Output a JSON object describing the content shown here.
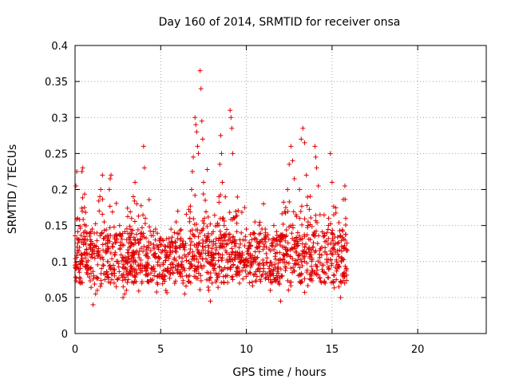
{
  "chart_data": {
    "type": "scatter",
    "title": "Day 160 of 2014, SRMTID for receiver onsa",
    "xlabel": "GPS time / hours",
    "ylabel": "SRMTID / TECUs",
    "xlim": [
      0,
      24
    ],
    "ylim": [
      0,
      0.4
    ],
    "x_ticks": [
      0,
      5,
      10,
      15,
      20
    ],
    "y_ticks": [
      0,
      0.05,
      0.1,
      0.15,
      0.2,
      0.25,
      0.3,
      0.35,
      0.4
    ],
    "x_tick_labels": [
      "0",
      "5",
      "10",
      "15",
      "20"
    ],
    "y_tick_labels": [
      "0",
      "0.05",
      "0.1",
      "0.15",
      "0.2",
      "0.25",
      "0.3",
      "0.35",
      "0.4"
    ],
    "grid": true,
    "marker": "+",
    "color": "#e00000",
    "series": [
      {
        "name": "SRMTID",
        "points": [
          [
            0.0,
            0.095
          ],
          [
            0.05,
            0.205
          ],
          [
            0.1,
            0.225
          ],
          [
            0.12,
            0.12
          ],
          [
            0.15,
            0.16
          ],
          [
            0.2,
            0.13
          ],
          [
            0.25,
            0.085
          ],
          [
            0.3,
            0.07
          ],
          [
            0.35,
            0.11
          ],
          [
            0.4,
            0.225
          ],
          [
            0.45,
            0.23
          ],
          [
            0.5,
            0.14
          ],
          [
            0.55,
            0.175
          ],
          [
            0.6,
            0.105
          ],
          [
            0.7,
            0.095
          ],
          [
            0.8,
            0.09
          ],
          [
            0.9,
            0.13
          ],
          [
            1.0,
            0.145
          ],
          [
            1.05,
            0.04
          ],
          [
            1.1,
            0.08
          ],
          [
            1.2,
            0.055
          ],
          [
            1.3,
            0.06
          ],
          [
            1.4,
            0.11
          ],
          [
            1.45,
            0.19
          ],
          [
            1.5,
            0.2
          ],
          [
            1.6,
            0.22
          ],
          [
            1.7,
            0.155
          ],
          [
            1.8,
            0.125
          ],
          [
            1.9,
            0.1
          ],
          [
            2.0,
            0.2
          ],
          [
            2.05,
            0.215
          ],
          [
            2.1,
            0.22
          ],
          [
            2.2,
            0.12
          ],
          [
            2.3,
            0.08
          ],
          [
            2.4,
            0.065
          ],
          [
            2.5,
            0.1
          ],
          [
            2.6,
            0.15
          ],
          [
            2.7,
            0.135
          ],
          [
            2.8,
            0.05
          ],
          [
            2.9,
            0.055
          ],
          [
            3.0,
            0.06
          ],
          [
            3.1,
            0.075
          ],
          [
            3.2,
            0.13
          ],
          [
            3.3,
            0.16
          ],
          [
            3.4,
            0.19
          ],
          [
            3.5,
            0.21
          ],
          [
            3.6,
            0.18
          ],
          [
            3.7,
            0.11
          ],
          [
            3.8,
            0.085
          ],
          [
            3.9,
            0.07
          ],
          [
            4.0,
            0.26
          ],
          [
            4.05,
            0.23
          ],
          [
            4.1,
            0.16
          ],
          [
            4.2,
            0.12
          ],
          [
            4.3,
            0.095
          ],
          [
            4.4,
            0.075
          ],
          [
            4.5,
            0.09
          ],
          [
            4.6,
            0.12
          ],
          [
            4.7,
            0.145
          ],
          [
            4.8,
            0.08
          ],
          [
            4.9,
            0.105
          ],
          [
            5.0,
            0.13
          ],
          [
            5.1,
            0.115
          ],
          [
            5.2,
            0.075
          ],
          [
            5.3,
            0.06
          ],
          [
            5.4,
            0.09
          ],
          [
            5.5,
            0.12
          ],
          [
            5.6,
            0.145
          ],
          [
            5.7,
            0.085
          ],
          [
            5.8,
            0.14
          ],
          [
            5.9,
            0.155
          ],
          [
            6.0,
            0.17
          ],
          [
            6.1,
            0.12
          ],
          [
            6.2,
            0.095
          ],
          [
            6.3,
            0.07
          ],
          [
            6.4,
            0.055
          ],
          [
            6.5,
            0.08
          ],
          [
            6.6,
            0.11
          ],
          [
            6.7,
            0.16
          ],
          [
            6.8,
            0.2
          ],
          [
            6.85,
            0.225
          ],
          [
            6.9,
            0.245
          ],
          [
            7.0,
            0.3
          ],
          [
            7.05,
            0.29
          ],
          [
            7.1,
            0.28
          ],
          [
            7.15,
            0.26
          ],
          [
            7.2,
            0.25
          ],
          [
            7.3,
            0.365
          ],
          [
            7.35,
            0.34
          ],
          [
            7.4,
            0.295
          ],
          [
            7.45,
            0.27
          ],
          [
            7.5,
            0.21
          ],
          [
            7.55,
            0.16
          ],
          [
            7.6,
            0.12
          ],
          [
            7.7,
            0.085
          ],
          [
            7.8,
            0.06
          ],
          [
            7.9,
            0.045
          ],
          [
            8.0,
            0.07
          ],
          [
            8.1,
            0.095
          ],
          [
            8.2,
            0.125
          ],
          [
            8.3,
            0.15
          ],
          [
            8.4,
            0.19
          ],
          [
            8.45,
            0.235
          ],
          [
            8.5,
            0.275
          ],
          [
            8.55,
            0.25
          ],
          [
            8.6,
            0.21
          ],
          [
            8.7,
            0.15
          ],
          [
            8.8,
            0.115
          ],
          [
            8.9,
            0.09
          ],
          [
            9.0,
            0.11
          ],
          [
            9.05,
            0.31
          ],
          [
            9.1,
            0.3
          ],
          [
            9.15,
            0.285
          ],
          [
            9.2,
            0.25
          ],
          [
            9.3,
            0.16
          ],
          [
            9.4,
            0.125
          ],
          [
            9.5,
            0.09
          ],
          [
            9.6,
            0.07
          ],
          [
            9.7,
            0.1
          ],
          [
            9.8,
            0.13
          ],
          [
            9.9,
            0.175
          ],
          [
            10.0,
            0.145
          ],
          [
            10.1,
            0.11
          ],
          [
            10.2,
            0.085
          ],
          [
            10.3,
            0.095
          ],
          [
            10.4,
            0.14
          ],
          [
            10.5,
            0.155
          ],
          [
            10.6,
            0.12
          ],
          [
            10.7,
            0.09
          ],
          [
            10.8,
            0.075
          ],
          [
            10.9,
            0.13
          ],
          [
            11.0,
            0.18
          ],
          [
            11.1,
            0.145
          ],
          [
            11.2,
            0.105
          ],
          [
            11.3,
            0.075
          ],
          [
            11.4,
            0.06
          ],
          [
            11.5,
            0.095
          ],
          [
            11.6,
            0.15
          ],
          [
            11.7,
            0.13
          ],
          [
            11.8,
            0.09
          ],
          [
            11.9,
            0.07
          ],
          [
            12.0,
            0.045
          ],
          [
            12.1,
            0.08
          ],
          [
            12.2,
            0.12
          ],
          [
            12.3,
            0.175
          ],
          [
            12.4,
            0.2
          ],
          [
            12.5,
            0.235
          ],
          [
            12.6,
            0.26
          ],
          [
            12.7,
            0.24
          ],
          [
            12.8,
            0.215
          ],
          [
            12.9,
            0.165
          ],
          [
            13.0,
            0.14
          ],
          [
            13.1,
            0.2
          ],
          [
            13.2,
            0.27
          ],
          [
            13.3,
            0.285
          ],
          [
            13.4,
            0.265
          ],
          [
            13.5,
            0.22
          ],
          [
            13.6,
            0.155
          ],
          [
            13.7,
            0.105
          ],
          [
            13.8,
            0.08
          ],
          [
            13.9,
            0.12
          ],
          [
            14.0,
            0.26
          ],
          [
            14.05,
            0.245
          ],
          [
            14.1,
            0.23
          ],
          [
            14.2,
            0.205
          ],
          [
            14.3,
            0.165
          ],
          [
            14.4,
            0.12
          ],
          [
            14.5,
            0.095
          ],
          [
            14.6,
            0.07
          ],
          [
            14.7,
            0.11
          ],
          [
            14.8,
            0.16
          ],
          [
            14.9,
            0.25
          ],
          [
            15.0,
            0.21
          ],
          [
            15.1,
            0.165
          ],
          [
            15.2,
            0.125
          ],
          [
            15.3,
            0.09
          ],
          [
            15.4,
            0.065
          ],
          [
            15.5,
            0.05
          ],
          [
            15.6,
            0.08
          ],
          [
            15.7,
            0.12
          ],
          [
            15.75,
            0.205
          ],
          [
            15.8,
            0.16
          ],
          [
            15.85,
            0.115
          ]
        ]
      }
    ],
    "jitter_fill": {
      "from_hour": 0.0,
      "to_hour": 15.9,
      "count": 1400,
      "base_center": 0.105,
      "seed": 160
    }
  }
}
